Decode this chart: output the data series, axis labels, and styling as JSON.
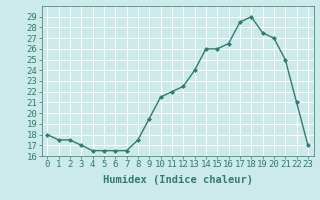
{
  "x": [
    0,
    1,
    2,
    3,
    4,
    5,
    6,
    7,
    8,
    9,
    10,
    11,
    12,
    13,
    14,
    15,
    16,
    17,
    18,
    19,
    20,
    21,
    22,
    23
  ],
  "y": [
    18,
    17.5,
    17.5,
    17,
    16.5,
    16.5,
    16.5,
    16.5,
    17.5,
    19.5,
    21.5,
    22,
    22.5,
    24,
    26,
    26,
    26.5,
    28.5,
    29,
    27.5,
    27,
    25,
    21,
    17
  ],
  "line_color": "#2e7d6e",
  "marker": "D",
  "marker_size": 2.0,
  "bg_color": "#cceaea",
  "grid_color": "#ffffff",
  "xlabel": "Humidex (Indice chaleur)",
  "ylim": [
    16,
    30
  ],
  "xlim": [
    -0.5,
    23.5
  ],
  "yticks": [
    16,
    17,
    18,
    19,
    20,
    21,
    22,
    23,
    24,
    25,
    26,
    27,
    28,
    29
  ],
  "xticks": [
    0,
    1,
    2,
    3,
    4,
    5,
    6,
    7,
    8,
    9,
    10,
    11,
    12,
    13,
    14,
    15,
    16,
    17,
    18,
    19,
    20,
    21,
    22,
    23
  ],
  "xtick_labels": [
    "0",
    "1",
    "2",
    "3",
    "4",
    "5",
    "6",
    "7",
    "8",
    "9",
    "10",
    "11",
    "12",
    "13",
    "14",
    "15",
    "16",
    "17",
    "18",
    "19",
    "20",
    "21",
    "22",
    "23"
  ],
  "ytick_labels": [
    "16",
    "17",
    "18",
    "19",
    "20",
    "21",
    "22",
    "23",
    "24",
    "25",
    "26",
    "27",
    "28",
    "29"
  ],
  "xlabel_fontsize": 7.5,
  "tick_fontsize": 6.5,
  "line_width": 1.0
}
